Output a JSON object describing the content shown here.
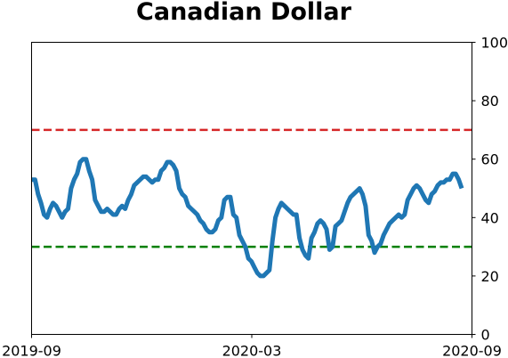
{
  "chart_data": {
    "type": "line",
    "title": "Canadian Dollar",
    "xlabel": "",
    "ylabel": "",
    "x_ticks": [
      "2019-09",
      "2020-03",
      "2020-09"
    ],
    "y_ticks": [
      0,
      20,
      40,
      60,
      80,
      100
    ],
    "ylim": [
      0,
      100
    ],
    "y_axis_side": "right",
    "grid": false,
    "legend": "none",
    "series": [
      {
        "color": "#1f77b4",
        "values": [
          53,
          53,
          48,
          45,
          41,
          40,
          43,
          45,
          44,
          42,
          40,
          42,
          43,
          50,
          53,
          55,
          59,
          60,
          60,
          56,
          53,
          46,
          44,
          42,
          42,
          43,
          42,
          41,
          41,
          43,
          44,
          43,
          46,
          48,
          51,
          52,
          53,
          54,
          54,
          53,
          52,
          53,
          53,
          56,
          57,
          59,
          59,
          58,
          56,
          50,
          48,
          47,
          44,
          43,
          42,
          41,
          39,
          38,
          36,
          35,
          35,
          36,
          39,
          40,
          46,
          47,
          47,
          41,
          40,
          34,
          32,
          30,
          26,
          25,
          23,
          21,
          20,
          20,
          21,
          22,
          32,
          40,
          43,
          45,
          44,
          43,
          42,
          41,
          41,
          33,
          29,
          27,
          26,
          33,
          35,
          38,
          39,
          38,
          36,
          29,
          30,
          37,
          38,
          39,
          42,
          45,
          47,
          48,
          49,
          50,
          48,
          44,
          34,
          32,
          28,
          30,
          31,
          34,
          36,
          38,
          39,
          40,
          41,
          40,
          41,
          46,
          48,
          50,
          51,
          50,
          48,
          46,
          45,
          48,
          49,
          51,
          52,
          52,
          53,
          53,
          55,
          55,
          53,
          50
        ]
      }
    ],
    "reference_lines": [
      {
        "value": 70,
        "color": "#d62728",
        "style": "dashed"
      },
      {
        "value": 30,
        "color": "#008000",
        "style": "dashed"
      }
    ]
  }
}
